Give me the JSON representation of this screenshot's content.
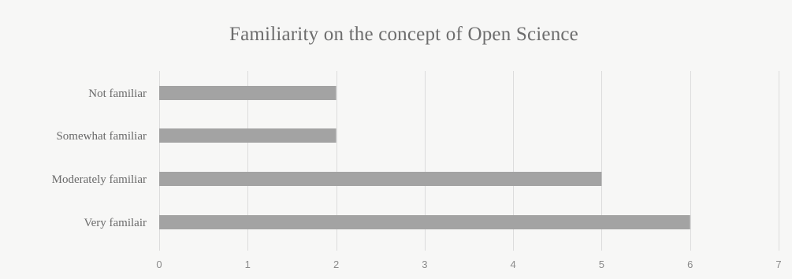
{
  "chart_data": {
    "type": "bar",
    "orientation": "horizontal",
    "title": "Familiarity on the concept of Open Science",
    "categories": [
      "Not familiar",
      "Somewhat familiar",
      "Moderately familiar",
      "Very familair"
    ],
    "values": [
      2,
      2,
      5,
      6
    ],
    "xlim": [
      0,
      7
    ],
    "xticks": [
      "0",
      "1",
      "2",
      "3",
      "4",
      "5",
      "6",
      "7"
    ],
    "grid": true,
    "legend": "none",
    "bar_color": "#a3a3a3"
  }
}
